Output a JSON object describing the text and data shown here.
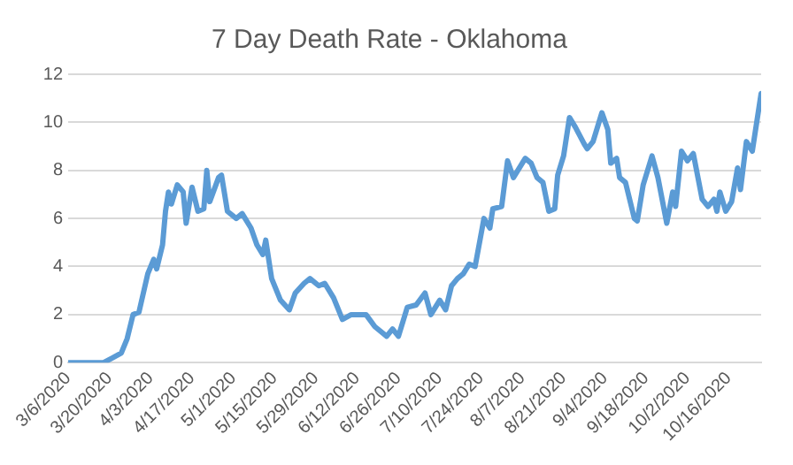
{
  "chart_data": {
    "type": "line",
    "title": "7 Day Death Rate - Oklahoma",
    "x": [
      "2020-03-06",
      "2020-03-18",
      "2020-03-21",
      "2020-03-24",
      "2020-03-26",
      "2020-03-28",
      "2020-03-30",
      "2020-04-02",
      "2020-04-04",
      "2020-04-05",
      "2020-04-07",
      "2020-04-08",
      "2020-04-09",
      "2020-04-10",
      "2020-04-12",
      "2020-04-14",
      "2020-04-15",
      "2020-04-17",
      "2020-04-19",
      "2020-04-21",
      "2020-04-22",
      "2020-04-23",
      "2020-04-26",
      "2020-04-27",
      "2020-04-29",
      "2020-05-02",
      "2020-05-04",
      "2020-05-07",
      "2020-05-09",
      "2020-05-11",
      "2020-05-12",
      "2020-05-14",
      "2020-05-17",
      "2020-05-20",
      "2020-05-22",
      "2020-05-25",
      "2020-05-27",
      "2020-05-30",
      "2020-06-01",
      "2020-06-04",
      "2020-06-07",
      "2020-06-10",
      "2020-06-15",
      "2020-06-18",
      "2020-06-22",
      "2020-06-24",
      "2020-06-26",
      "2020-06-29",
      "2020-07-02",
      "2020-07-05",
      "2020-07-07",
      "2020-07-10",
      "2020-07-12",
      "2020-07-14",
      "2020-07-16",
      "2020-07-18",
      "2020-07-20",
      "2020-07-22",
      "2020-07-25",
      "2020-07-27",
      "2020-07-28",
      "2020-07-31",
      "2020-08-02",
      "2020-08-04",
      "2020-08-08",
      "2020-08-10",
      "2020-08-12",
      "2020-08-14",
      "2020-08-16",
      "2020-08-18",
      "2020-08-19",
      "2020-08-21",
      "2020-08-23",
      "2020-08-25",
      "2020-08-28",
      "2020-08-29",
      "2020-08-31",
      "2020-09-03",
      "2020-09-05",
      "2020-09-06",
      "2020-09-08",
      "2020-09-09",
      "2020-09-11",
      "2020-09-14",
      "2020-09-15",
      "2020-09-17",
      "2020-09-20",
      "2020-09-22",
      "2020-09-25",
      "2020-09-27",
      "2020-09-28",
      "2020-09-30",
      "2020-10-02",
      "2020-10-04",
      "2020-10-07",
      "2020-10-09",
      "2020-10-11",
      "2020-10-12",
      "2020-10-13",
      "2020-10-15",
      "2020-10-17",
      "2020-10-19",
      "2020-10-20",
      "2020-10-22",
      "2020-10-24",
      "2020-10-27"
    ],
    "series": [
      {
        "color": "#5b9bd5",
        "values": [
          0,
          0,
          0.2,
          0.4,
          1.0,
          2.0,
          2.1,
          3.7,
          4.3,
          3.9,
          4.9,
          6.3,
          7.1,
          6.6,
          7.4,
          7.1,
          5.8,
          7.3,
          6.3,
          6.4,
          8.0,
          6.7,
          7.7,
          7.8,
          6.3,
          6.0,
          6.2,
          5.6,
          4.9,
          4.5,
          5.1,
          3.5,
          2.6,
          2.2,
          2.9,
          3.3,
          3.5,
          3.2,
          3.3,
          2.7,
          1.8,
          2.0,
          2.0,
          1.5,
          1.1,
          1.4,
          1.1,
          2.3,
          2.4,
          2.9,
          2.0,
          2.6,
          2.2,
          3.2,
          3.5,
          3.7,
          4.1,
          4.0,
          6.0,
          5.6,
          6.4,
          6.5,
          8.4,
          7.7,
          8.5,
          8.3,
          7.7,
          7.5,
          6.3,
          6.4,
          7.8,
          8.6,
          10.2,
          9.8,
          9.1,
          8.9,
          9.2,
          10.4,
          9.7,
          8.3,
          8.5,
          7.7,
          7.5,
          6.0,
          5.9,
          7.4,
          8.6,
          7.7,
          5.8,
          7.1,
          6.5,
          8.8,
          8.4,
          8.7,
          6.8,
          6.5,
          6.8,
          6.3,
          7.1,
          6.3,
          6.7,
          8.1,
          7.2,
          9.2,
          8.8,
          11.2
        ]
      }
    ],
    "xlim": [
      "2020-03-06",
      "2020-10-27"
    ],
    "xticks": [
      {
        "value": "2020-03-06",
        "label": "3/6/2020"
      },
      {
        "value": "2020-03-20",
        "label": "3/20/2020"
      },
      {
        "value": "2020-04-03",
        "label": "4/3/2020"
      },
      {
        "value": "2020-04-17",
        "label": "4/17/2020"
      },
      {
        "value": "2020-05-01",
        "label": "5/1/2020"
      },
      {
        "value": "2020-05-15",
        "label": "5/15/2020"
      },
      {
        "value": "2020-05-29",
        "label": "5/29/2020"
      },
      {
        "value": "2020-06-12",
        "label": "6/12/2020"
      },
      {
        "value": "2020-06-26",
        "label": "6/26/2020"
      },
      {
        "value": "2020-07-10",
        "label": "7/10/2020"
      },
      {
        "value": "2020-07-24",
        "label": "7/24/2020"
      },
      {
        "value": "2020-08-07",
        "label": "8/7/2020"
      },
      {
        "value": "2020-08-21",
        "label": "8/21/2020"
      },
      {
        "value": "2020-09-04",
        "label": "9/4/2020"
      },
      {
        "value": "2020-09-18",
        "label": "9/18/2020"
      },
      {
        "value": "2020-10-02",
        "label": "10/2/2020"
      },
      {
        "value": "2020-10-16",
        "label": "10/16/2020"
      }
    ],
    "ylim": [
      0,
      12
    ],
    "yticks": [
      0,
      2,
      4,
      6,
      8,
      10,
      12
    ],
    "grid": "y",
    "legend": false,
    "marker": "none",
    "line_style": "solid"
  }
}
